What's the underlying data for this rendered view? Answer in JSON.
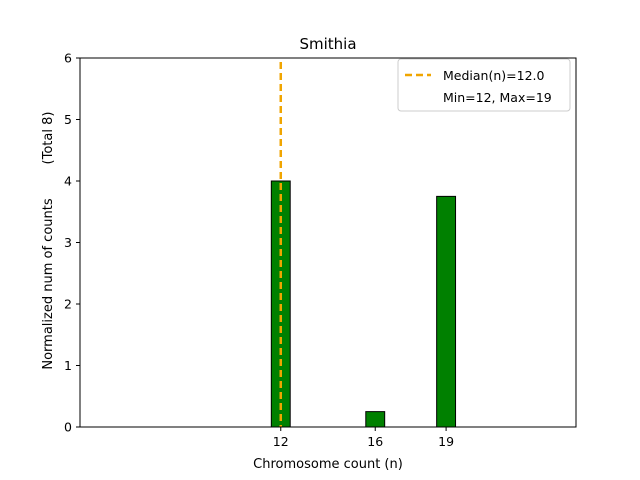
{
  "chart_data": {
    "type": "bar",
    "title": "Smithia",
    "xlabel": "Chromosome count (n)",
    "ylabel": "Normalized num of counts",
    "ylabel_note": "(Total 8)",
    "x": [
      12,
      16,
      19
    ],
    "values": [
      4.0,
      0.25,
      3.75
    ],
    "xlim": [
      3.5,
      24.5
    ],
    "ylim": [
      0,
      6
    ],
    "xticks": [
      "12",
      "16",
      "19"
    ],
    "yticks": [
      "0",
      "1",
      "2",
      "3",
      "4",
      "5",
      "6"
    ],
    "median_line": {
      "value": 12.0,
      "label": "Median(n)=12.0"
    },
    "range_label": "Min=12, Max=19",
    "legend_position": "top-right",
    "colors": {
      "bar": "#008000",
      "bar_edge": "#000000",
      "median": "#f0a500"
    }
  }
}
